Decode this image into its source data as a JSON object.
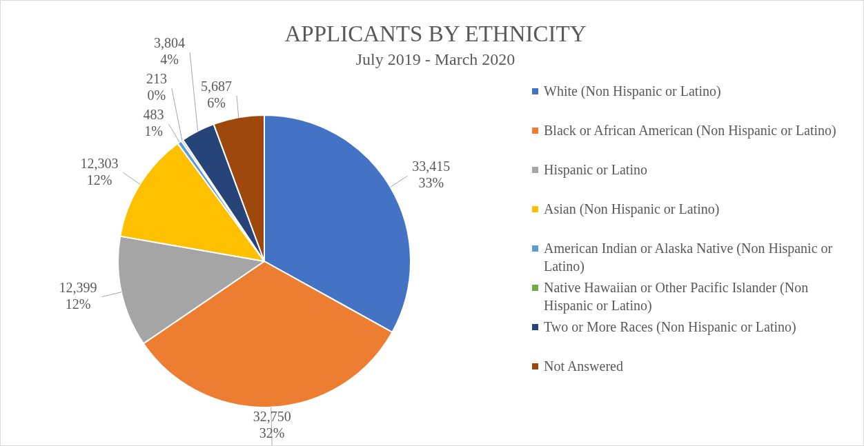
{
  "chart_data": {
    "type": "pie",
    "title": "APPLICANTS BY ETHNICITY",
    "subtitle": "July 2019 - March 2020",
    "categories": [
      "White (Non Hispanic or Latino)",
      "Black or African American (Non Hispanic or Latino)",
      "Hispanic or Latino",
      "Asian (Non Hispanic or Latino)",
      "American Indian or Alaska Native (Non Hispanic or Latino)",
      "Native Hawaiian or Other Pacific Islander (Non Hispanic or Latino)",
      "Two or More Races (Non Hispanic or Latino)",
      "Not Answered"
    ],
    "values": [
      33415,
      32750,
      12399,
      12303,
      483,
      213,
      3804,
      5687
    ],
    "colors": [
      "#4472c4",
      "#ed7d31",
      "#a5a5a5",
      "#ffc000",
      "#5b9bd5",
      "#70ad47",
      "#264478",
      "#9e480e"
    ],
    "value_labels": [
      "33,415\n33%",
      "32,750\n32%",
      "12,399\n12%",
      "12,303\n12%",
      "483\n1%",
      "213\n0%",
      "3,804\n4%",
      "5,687\n6%"
    ],
    "legend": "right"
  }
}
